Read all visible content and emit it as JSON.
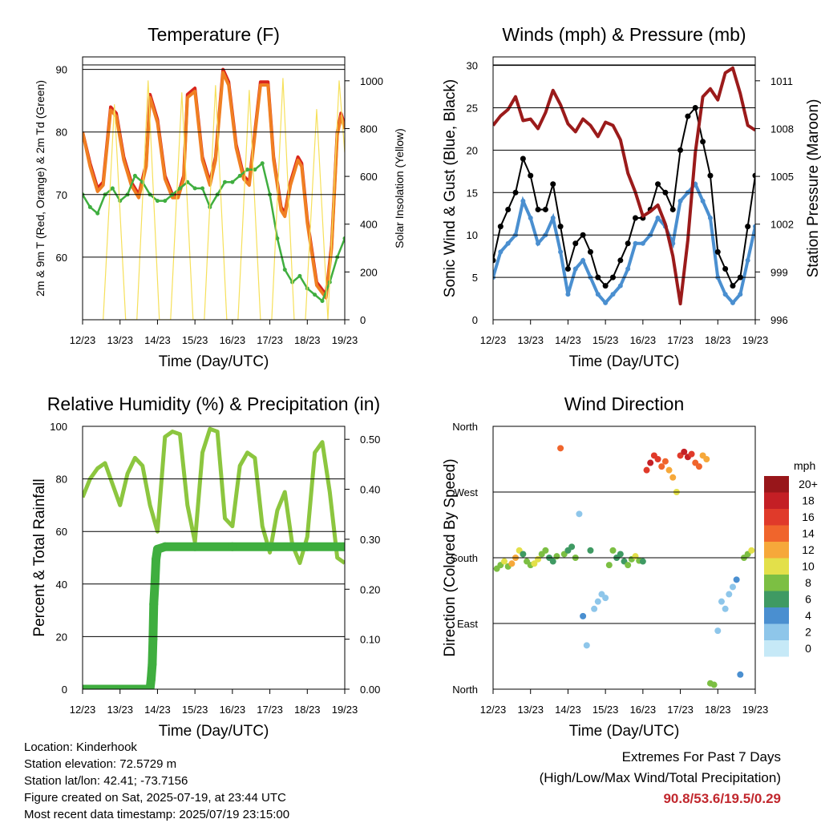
{
  "time_ticks": [
    "12/23",
    "13/23",
    "14/23",
    "15/23",
    "16/23",
    "17/23",
    "18/23",
    "19/23"
  ],
  "xlabel": "Time (Day/UTC)",
  "colors": {
    "temp": "#d9261c",
    "temp9": "#f07f22",
    "dew": "#3fae3f",
    "solar": "#f6e05a",
    "wind": "#4a8fd0",
    "gust": "#000000",
    "pressure": "#9b1b1b",
    "rh": "#8cc63f",
    "precip": "#3fae3f"
  },
  "chart_data": [
    {
      "id": "temperature",
      "type": "line",
      "title": "Temperature (F)",
      "xlabel": "Time (Day/UTC)",
      "ylabel": "2m & 9m T (Red, Orange) & 2m Td (Green)",
      "ylabel_right": "Solar Insolation (Yellow)",
      "ylim": [
        50,
        92
      ],
      "yticks": [
        60,
        70,
        80,
        90
      ],
      "y2lim": [
        0,
        1100
      ],
      "y2ticks": [
        0,
        200,
        400,
        600,
        800,
        1000
      ],
      "grid": true,
      "series": [
        {
          "name": "2m T",
          "color": "#d9261c",
          "axis": "left",
          "x": [
            12.0,
            12.2,
            12.4,
            12.55,
            12.75,
            12.9,
            13.1,
            13.3,
            13.5,
            13.7,
            13.8,
            14.0,
            14.2,
            14.4,
            14.55,
            14.7,
            14.8,
            15.0,
            15.2,
            15.4,
            15.55,
            15.75,
            15.9,
            16.1,
            16.3,
            16.45,
            16.6,
            16.75,
            16.95,
            17.1,
            17.3,
            17.4,
            17.55,
            17.75,
            17.85,
            18.0,
            18.25,
            18.5,
            18.65,
            18.8,
            18.9,
            19.0
          ],
          "values": [
            80,
            75,
            71,
            72,
            84,
            83,
            76,
            72,
            70,
            75,
            86,
            82,
            73,
            70,
            70,
            73,
            86,
            87,
            76,
            72,
            76,
            90,
            88,
            78,
            73,
            72,
            80,
            88,
            88,
            76,
            68,
            67,
            72,
            76,
            75,
            66,
            56,
            54,
            62,
            80,
            83,
            81
          ]
        },
        {
          "name": "9m T",
          "color": "#f07f22",
          "axis": "left",
          "x": [
            12.0,
            12.2,
            12.4,
            12.55,
            12.75,
            12.9,
            13.1,
            13.3,
            13.5,
            13.7,
            13.8,
            14.0,
            14.2,
            14.4,
            14.55,
            14.7,
            14.8,
            15.0,
            15.2,
            15.4,
            15.55,
            15.75,
            15.9,
            16.1,
            16.3,
            16.45,
            16.6,
            16.75,
            16.95,
            17.1,
            17.3,
            17.4,
            17.55,
            17.75,
            17.85,
            18.0,
            18.25,
            18.5,
            18.65,
            18.8,
            18.9,
            19.0
          ],
          "values": [
            80,
            74.5,
            70.5,
            71.5,
            83.5,
            82.5,
            75.5,
            71.5,
            69.5,
            74.5,
            85.5,
            81.5,
            72.5,
            69.5,
            69.5,
            72.5,
            85.5,
            86.5,
            75.5,
            71.5,
            75.5,
            89.5,
            87.5,
            77.5,
            72.5,
            71.5,
            79.5,
            87.5,
            87.5,
            75.5,
            67.5,
            66.5,
            71.5,
            75.5,
            74.5,
            65.5,
            55.5,
            53.5,
            61.5,
            79.5,
            82.5,
            80.5
          ]
        },
        {
          "name": "2m Td",
          "color": "#3fae3f",
          "axis": "left",
          "x": [
            12.0,
            12.2,
            12.4,
            12.6,
            12.8,
            13.0,
            13.2,
            13.4,
            13.6,
            13.8,
            14.0,
            14.2,
            14.4,
            14.6,
            14.8,
            15.0,
            15.2,
            15.4,
            15.6,
            15.8,
            16.0,
            16.2,
            16.4,
            16.6,
            16.8,
            17.0,
            17.2,
            17.4,
            17.6,
            17.8,
            18.0,
            18.2,
            18.4,
            18.6,
            18.8,
            19.0
          ],
          "values": [
            70,
            68,
            67,
            70,
            71,
            69,
            70,
            73,
            72,
            70,
            69,
            69,
            70,
            71,
            72,
            71,
            71,
            68,
            70,
            72,
            72,
            73,
            74,
            74,
            75,
            70,
            63,
            58,
            56,
            57,
            55,
            54,
            53,
            56,
            60,
            63
          ]
        },
        {
          "name": "Solar",
          "color": "#f6e05a",
          "axis": "right",
          "x": [
            12.55,
            12.85,
            13.15,
            13.45,
            13.75,
            14.05,
            14.35,
            14.65,
            14.95,
            15.25,
            15.55,
            15.85,
            16.15,
            16.45,
            16.75,
            17.05,
            17.35,
            17.65,
            17.95,
            18.25,
            18.55,
            18.85,
            19.0
          ],
          "values": [
            0,
            900,
            0,
            0,
            1000,
            0,
            0,
            950,
            0,
            0,
            980,
            0,
            0,
            960,
            0,
            0,
            1010,
            0,
            0,
            880,
            0,
            1000,
            700
          ]
        }
      ]
    },
    {
      "id": "winds",
      "type": "scatter",
      "title": "Winds (mph) & Pressure (mb)",
      "xlabel": "Time (Day/UTC)",
      "ylabel": "Sonic Wind & Gust (Blue, Black)",
      "ylabel_right": "Station Pressure (Maroon)",
      "ylim": [
        0,
        31
      ],
      "yticks": [
        0,
        5,
        10,
        15,
        20,
        25,
        30
      ],
      "y2lim": [
        996,
        1012.5
      ],
      "y2ticks": [
        996,
        999,
        1002,
        1005,
        1008,
        1011
      ],
      "grid": true,
      "series": [
        {
          "name": "Sonic Wind",
          "color": "#4a8fd0",
          "axis": "left",
          "x": [
            12.0,
            12.2,
            12.4,
            12.6,
            12.8,
            13.0,
            13.2,
            13.4,
            13.6,
            13.8,
            14.0,
            14.2,
            14.4,
            14.6,
            14.8,
            15.0,
            15.2,
            15.4,
            15.6,
            15.8,
            16.0,
            16.2,
            16.4,
            16.6,
            16.8,
            17.0,
            17.2,
            17.4,
            17.6,
            17.8,
            18.0,
            18.2,
            18.4,
            18.6,
            18.8,
            19.0
          ],
          "values": [
            5,
            8,
            9,
            10,
            14,
            12,
            9,
            10,
            12,
            8,
            3,
            6,
            7,
            5,
            3,
            2,
            3,
            4,
            6,
            9,
            9,
            10,
            12,
            11,
            9,
            14,
            15,
            16,
            14,
            12,
            5,
            3,
            2,
            3,
            7,
            11
          ]
        },
        {
          "name": "Gust",
          "color": "#000000",
          "axis": "left",
          "x": [
            12.0,
            12.2,
            12.4,
            12.6,
            12.8,
            13.0,
            13.2,
            13.4,
            13.6,
            13.8,
            14.0,
            14.2,
            14.4,
            14.6,
            14.8,
            15.0,
            15.2,
            15.4,
            15.6,
            15.8,
            16.0,
            16.2,
            16.4,
            16.6,
            16.8,
            17.0,
            17.2,
            17.4,
            17.6,
            17.8,
            18.0,
            18.2,
            18.4,
            18.6,
            18.8,
            19.0
          ],
          "values": [
            7,
            11,
            13,
            15,
            19,
            17,
            13,
            13,
            16,
            11,
            6,
            9,
            10,
            8,
            5,
            4,
            5,
            7,
            9,
            12,
            12,
            13,
            16,
            15,
            13,
            20,
            24,
            25,
            21,
            17,
            8,
            6,
            4,
            5,
            11,
            17
          ]
        },
        {
          "name": "Pressure",
          "color": "#9b1b1b",
          "axis": "right",
          "x": [
            12.0,
            12.2,
            12.4,
            12.6,
            12.8,
            13.0,
            13.2,
            13.4,
            13.6,
            13.8,
            14.0,
            14.2,
            14.4,
            14.6,
            14.8,
            15.0,
            15.2,
            15.4,
            15.6,
            15.8,
            16.0,
            16.2,
            16.4,
            16.6,
            16.8,
            17.0,
            17.2,
            17.4,
            17.6,
            17.8,
            18.0,
            18.2,
            18.4,
            18.6,
            18.8,
            19.0
          ],
          "values": [
            1008.2,
            1008.8,
            1009.2,
            1010.0,
            1008.5,
            1008.6,
            1008.0,
            1009.0,
            1010.4,
            1009.5,
            1008.3,
            1007.8,
            1008.6,
            1008.2,
            1007.5,
            1008.4,
            1008.2,
            1007.3,
            1005.2,
            1004.0,
            1002.5,
            1002.8,
            1003.2,
            1002.0,
            1000.0,
            997.0,
            1001.0,
            1006.5,
            1010.0,
            1010.5,
            1009.8,
            1011.5,
            1011.8,
            1010.2,
            1008.2,
            1007.9
          ]
        }
      ]
    },
    {
      "id": "humidity",
      "type": "line",
      "title": "Relative Humidity (%) & Precipitation (in)",
      "xlabel": "Time (Day/UTC)",
      "ylabel": "Percent & Total Rainfall",
      "ylim": [
        0,
        100
      ],
      "yticks": [
        0,
        20,
        40,
        60,
        80,
        100
      ],
      "y2lim": [
        0,
        0.526
      ],
      "y2ticks": [
        "0.00",
        "0.10",
        "0.20",
        "0.30",
        "0.40",
        "0.50"
      ],
      "grid": true,
      "series": [
        {
          "name": "RH",
          "color": "#8cc63f",
          "axis": "left",
          "x": [
            12.0,
            12.2,
            12.4,
            12.6,
            12.8,
            13.0,
            13.2,
            13.4,
            13.6,
            13.8,
            14.0,
            14.2,
            14.4,
            14.6,
            14.8,
            15.0,
            15.2,
            15.4,
            15.6,
            15.8,
            16.0,
            16.2,
            16.4,
            16.6,
            16.8,
            17.0,
            17.2,
            17.4,
            17.6,
            17.8,
            18.0,
            18.2,
            18.4,
            18.6,
            18.8,
            19.0
          ],
          "values": [
            73,
            80,
            84,
            86,
            78,
            70,
            82,
            88,
            85,
            70,
            60,
            96,
            98,
            97,
            70,
            56,
            90,
            99,
            98,
            65,
            62,
            85,
            90,
            88,
            62,
            52,
            68,
            75,
            55,
            48,
            58,
            90,
            94,
            75,
            50,
            48
          ]
        },
        {
          "name": "Precipitation",
          "color": "#3fae3f",
          "axis": "right",
          "x": [
            12.0,
            12.5,
            13.0,
            13.5,
            13.8,
            13.83,
            13.86,
            13.88,
            13.9,
            13.93,
            13.96,
            14.0,
            14.2,
            15.0,
            16.0,
            17.0,
            18.0,
            19.0
          ],
          "values": [
            0,
            0,
            0,
            0,
            0,
            0.02,
            0.05,
            0.1,
            0.17,
            0.21,
            0.26,
            0.28,
            0.285,
            0.285,
            0.285,
            0.285,
            0.285,
            0.285
          ]
        }
      ]
    },
    {
      "id": "direction",
      "type": "scatter",
      "title": "Wind Direction",
      "xlabel": "Time (Day/UTC)",
      "ylabel": "Direction (Colored By Speed)",
      "yticks": [
        "North",
        "East",
        "South",
        "West",
        "North"
      ],
      "ylim": [
        0,
        360
      ],
      "grid": true,
      "colorbar": {
        "unit": "mph",
        "levels": [
          "0",
          "2",
          "4",
          "6",
          "8",
          "10",
          "12",
          "14",
          "16",
          "18",
          "20+"
        ],
        "colors": [
          "#c6e9f7",
          "#8ec6ea",
          "#4a8fd0",
          "#3f9a63",
          "#7cbf43",
          "#e3e04a",
          "#f6a83a",
          "#f0652c",
          "#e03a2a",
          "#c41f25",
          "#98161a"
        ]
      },
      "series": [
        {
          "name": "direction",
          "axis": "left",
          "x": [
            12.1,
            12.2,
            12.3,
            12.4,
            12.5,
            12.6,
            12.7,
            12.8,
            12.9,
            13.0,
            13.1,
            13.2,
            13.3,
            13.4,
            13.5,
            13.6,
            13.7,
            13.8,
            13.9,
            14.0,
            14.1,
            14.2,
            14.3,
            14.4,
            14.5,
            14.6,
            14.7,
            14.8,
            14.9,
            15.0,
            15.1,
            15.2,
            15.3,
            15.4,
            15.5,
            15.6,
            15.7,
            15.8,
            15.9,
            16.0,
            16.1,
            16.2,
            16.3,
            16.4,
            16.5,
            16.6,
            16.7,
            16.8,
            16.9,
            17.0,
            17.1,
            17.2,
            17.3,
            17.4,
            17.5,
            17.6,
            17.7,
            17.8,
            17.9,
            18.0,
            18.1,
            18.2,
            18.3,
            18.4,
            18.5,
            18.6,
            18.7,
            18.8,
            18.9
          ],
          "values": [
            165,
            170,
            175,
            168,
            172,
            180,
            190,
            185,
            175,
            170,
            172,
            178,
            185,
            190,
            180,
            175,
            182,
            330,
            185,
            190,
            195,
            180,
            240,
            100,
            60,
            190,
            110,
            120,
            130,
            125,
            170,
            190,
            180,
            185,
            175,
            170,
            178,
            182,
            176,
            175,
            300,
            310,
            320,
            315,
            305,
            312,
            300,
            290,
            270,
            320,
            325,
            318,
            322,
            310,
            305,
            320,
            315,
            8,
            6,
            80,
            120,
            110,
            130,
            140,
            150,
            20,
            180,
            185,
            190
          ],
          "speeds": [
            8,
            9,
            10,
            9,
            12,
            13,
            10,
            7,
            8,
            9,
            10,
            11,
            8,
            9,
            7,
            6,
            8,
            14,
            9,
            7,
            6,
            8,
            3,
            4,
            3,
            6,
            2,
            2,
            3,
            2,
            8,
            9,
            7,
            6,
            7,
            8,
            9,
            10,
            8,
            7,
            16,
            18,
            17,
            16,
            15,
            14,
            12,
            13,
            11,
            17,
            18,
            19,
            16,
            15,
            14,
            13,
            12,
            9,
            8,
            3,
            2,
            2,
            3,
            3,
            4,
            5,
            8,
            9,
            10
          ]
        }
      ]
    }
  ],
  "info": {
    "location": "Location: Kinderhook",
    "elevation": "Station elevation: 72.5729 m",
    "latlon": "Station lat/lon: 42.41; -73.7156",
    "created": "Figure created on Sat, 2025-07-19, at 23:44 UTC",
    "recent": "Most recent data timestamp: 2025/07/19 23:15:00"
  },
  "extremes": {
    "title": "Extremes For Past 7 Days",
    "subtitle": "(High/Low/Max Wind/Total Precipitation)",
    "values": "90.8/53.6/19.5/0.29"
  }
}
